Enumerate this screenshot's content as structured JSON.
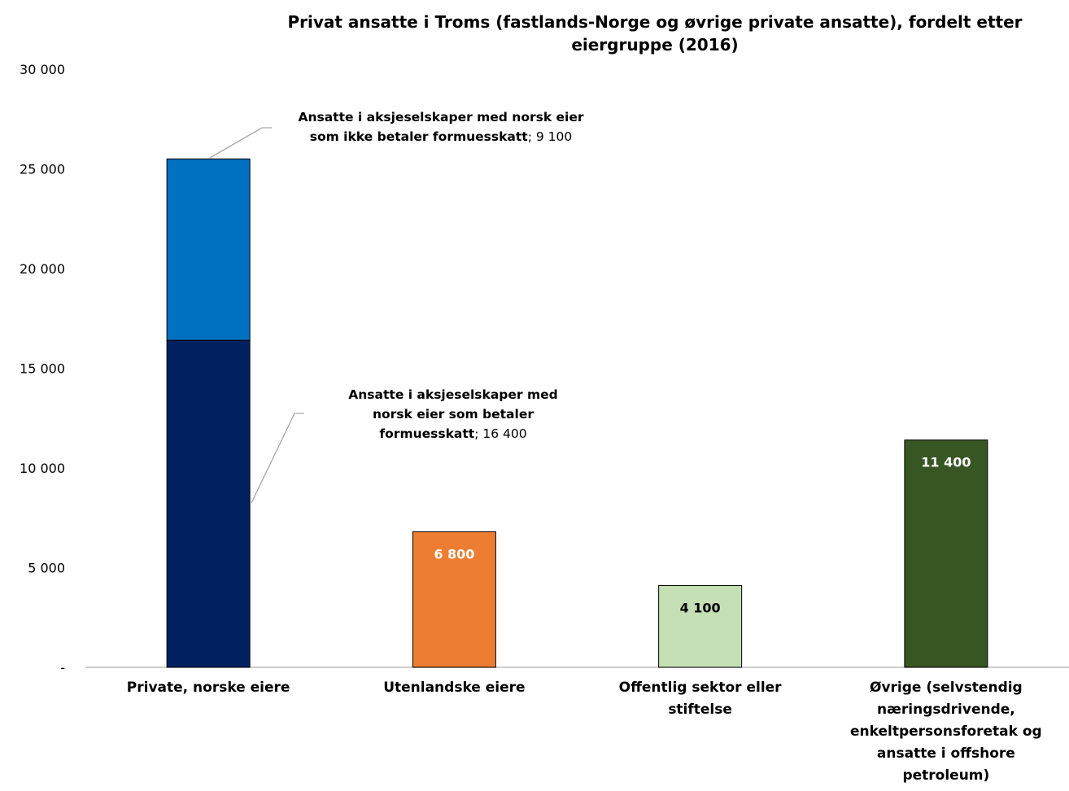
{
  "chart_data": {
    "type": "bar",
    "stacked": true,
    "title": "Privat ansatte i Troms (fastlands-Norge og øvrige private ansatte), fordelt etter eiergruppe (2016)",
    "title_lines": [
      "Privat ansatte i Troms (fastlands-Norge og øvrige private ansatte), fordelt etter",
      "eiergruppe (2016)"
    ],
    "xlabel": "",
    "ylabel": "",
    "ylim": [
      0,
      30000
    ],
    "yticks": [
      0,
      5000,
      10000,
      15000,
      20000,
      25000,
      30000
    ],
    "ytick_labels": [
      "-",
      "5 000",
      "10 000",
      "15 000",
      "20 000",
      "25 000",
      "30 000"
    ],
    "grid": false,
    "categories": [
      "Private, norske eiere",
      "Utenlandske eiere",
      "Offentlig sektor eller stiftelse",
      "Øvrige (selvstendig næringsdrivende, enkeltpersonsforetak og ansatte i offshore petroleum)"
    ],
    "category_lines": [
      [
        "Private, norske eiere"
      ],
      [
        "Utenlandske eiere"
      ],
      [
        "Offentlig sektor eller",
        "stiftelse"
      ],
      [
        "Øvrige (selvstendig",
        "næringsdrivende,",
        "enkeltpersonsforetak og",
        "ansatte i offshore",
        "petroleum)"
      ]
    ],
    "series": [
      {
        "name": "Ansatte i aksjeselskaper med norsk eier som betaler formuesskatt",
        "values": [
          16400,
          null,
          null,
          null
        ],
        "color": "#002060"
      },
      {
        "name": "Ansatte i aksjeselskaper med norsk eier som ikke betaler formuesskatt",
        "values": [
          9100,
          null,
          null,
          null
        ],
        "color": "#0070C0"
      },
      {
        "values": [
          null,
          6800,
          4100,
          11400
        ],
        "colors": [
          null,
          "#ED7D31",
          "#C5E0B4",
          "#375623"
        ],
        "label_colors": [
          null,
          "#ffffff",
          "#000000",
          "#ffffff"
        ],
        "labels": [
          null,
          "6 800",
          "4 100",
          "11 400"
        ]
      }
    ],
    "annotations": [
      {
        "target": "Ansatte i aksjeselskaper med norsk eier som ikke betaler formuesskatt",
        "bold_lines": [
          "Ansatte i aksjeselskaper med norsk eier",
          "som ikke betaler formuesskatt"
        ],
        "value_text": "; 9 100"
      },
      {
        "target": "Ansatte i aksjeselskaper med norsk eier som betaler formuesskatt",
        "bold_lines": [
          "Ansatte i aksjeselskaper med",
          "norsk eier som betaler",
          "formuesskatt"
        ],
        "value_text": "; 16 400"
      }
    ],
    "legend": "none"
  }
}
